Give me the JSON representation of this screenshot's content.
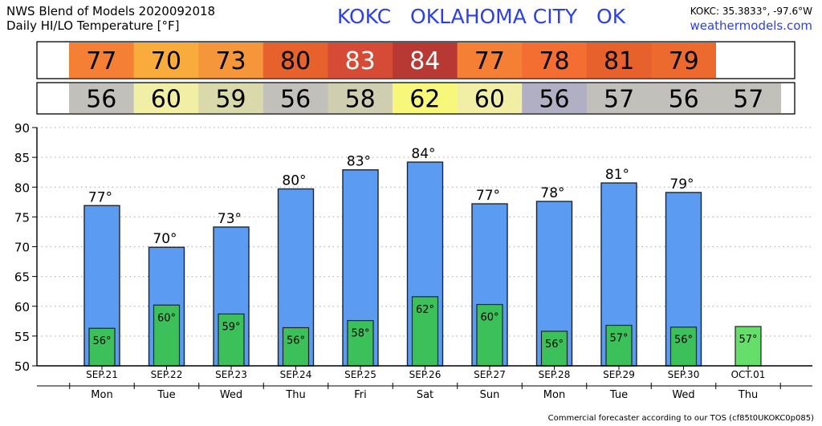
{
  "header": {
    "title_line1": "NWS Blend of Models 2020092018",
    "title_line2": "Daily HI/LO Temperature [°F]",
    "station": "KOKC   OKLAHOMA CITY   OK",
    "coords": "KOKC: 35.3833°, -97.6°W",
    "site": "weathermodels.com"
  },
  "footer": "Commercial forecaster according to our TOS (cf85t0UKOKC0p085)",
  "colors": {
    "hi_bar": "#5b9bf2",
    "lo_bar": "#3cc15a",
    "lo_bar_last": "#66df6a"
  },
  "chart_data": {
    "type": "bar",
    "ylim": [
      50,
      90
    ],
    "yticks": [
      50,
      55,
      60,
      65,
      70,
      75,
      80,
      85,
      90
    ],
    "grid": true,
    "categories": [
      "SEP.21",
      "SEP.22",
      "SEP.23",
      "SEP.24",
      "SEP.25",
      "SEP.26",
      "SEP.27",
      "SEP.28",
      "SEP.29",
      "SEP.30",
      "OCT.01"
    ],
    "weekdays": [
      "Mon",
      "Tue",
      "Wed",
      "Thu",
      "Fri",
      "Sat",
      "Sun",
      "Mon",
      "Tue",
      "Wed",
      "Thu"
    ],
    "series": [
      {
        "name": "HI",
        "values": [
          77,
          70,
          73,
          80,
          83,
          84,
          77,
          78,
          81,
          79,
          null
        ],
        "exact": [
          76.9,
          69.9,
          73.3,
          79.7,
          82.9,
          84.2,
          77.2,
          77.6,
          80.7,
          79.1,
          null
        ]
      },
      {
        "name": "LO",
        "values": [
          56,
          60,
          59,
          56,
          58,
          62,
          60,
          56,
          57,
          56,
          57
        ],
        "exact": [
          56.3,
          60.2,
          58.7,
          56.4,
          57.6,
          61.6,
          60.3,
          55.8,
          56.8,
          56.5,
          56.6
        ]
      }
    ],
    "hi_cell_colors": [
      "#f57f35",
      "#f9ac3b",
      "#f6963a",
      "#e6612c",
      "#d54b35",
      "#b83833",
      "#f57f35",
      "#f36e30",
      "#e6612c",
      "#ec6a2e",
      "#ffffff"
    ],
    "lo_cell_colors": [
      "#c1c0bb",
      "#f1eea6",
      "#dad9ac",
      "#c1c0bb",
      "#cfceb0",
      "#f7f77c",
      "#f1eea6",
      "#b0afc3",
      "#c1c0bb",
      "#c1c0bb",
      "#c1c0bb"
    ]
  }
}
